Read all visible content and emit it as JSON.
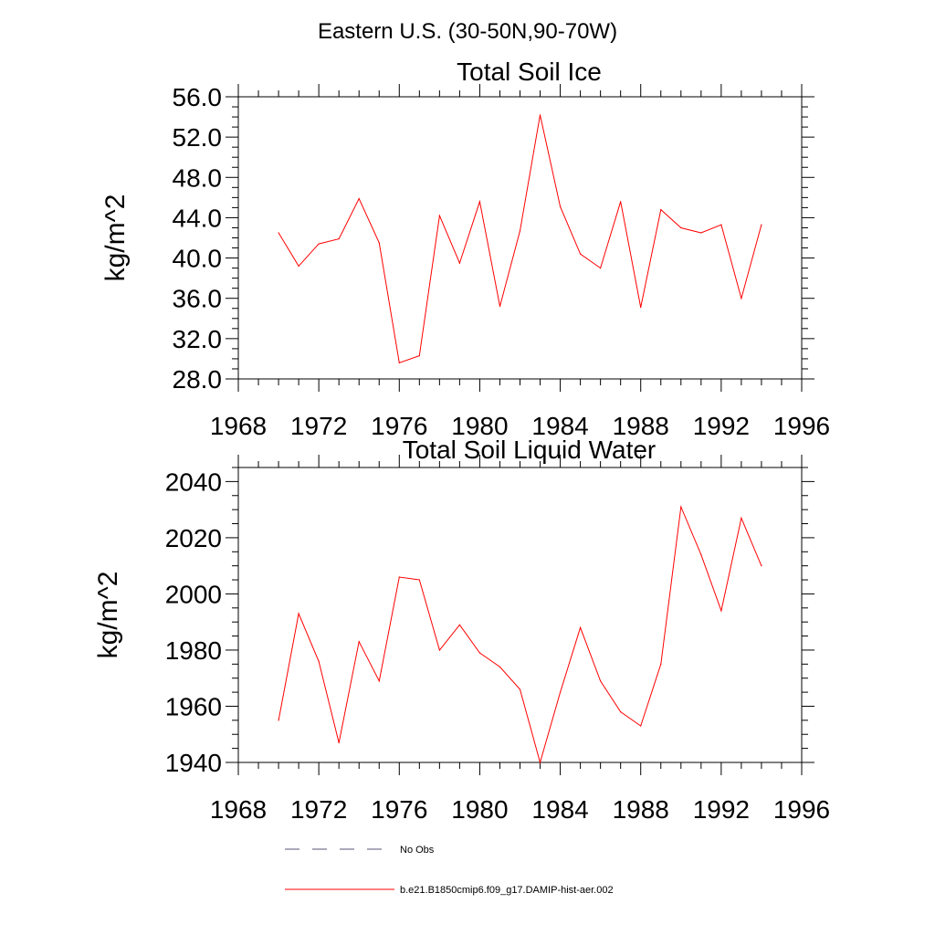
{
  "page_title": "Eastern U.S. (30-50N,90-70W)",
  "chart_data": [
    {
      "type": "line",
      "title": "Total Soil Ice",
      "xlabel": "",
      "ylabel": "kg/m^2",
      "xlim": [
        1968,
        1996
      ],
      "ylim": [
        28,
        56
      ],
      "x_ticks": [
        "1968",
        "1972",
        "1976",
        "1980",
        "1984",
        "1988",
        "1992",
        "1996"
      ],
      "y_ticks": [
        "28.0",
        "32.0",
        "36.0",
        "40.0",
        "44.0",
        "48.0",
        "52.0",
        "56.0"
      ],
      "grid": false,
      "series": [
        {
          "name": "b.e21.B1850cmip6.f09_g17.DAMIP-hist-aer.002",
          "color": "#ff0000",
          "x": [
            1970,
            1971,
            1972,
            1973,
            1974,
            1975,
            1976,
            1977,
            1978,
            1979,
            1980,
            1981,
            1982,
            1983,
            1984,
            1985,
            1986,
            1987,
            1988,
            1989,
            1990,
            1991,
            1992,
            1993,
            1994
          ],
          "y": [
            42.5,
            39.2,
            41.4,
            41.9,
            45.9,
            41.5,
            29.6,
            30.3,
            44.2,
            39.5,
            45.6,
            35.2,
            42.7,
            54.2,
            45.1,
            40.4,
            39.0,
            45.6,
            35.1,
            44.8,
            43.0,
            42.5,
            43.3,
            36.0,
            43.3
          ]
        }
      ]
    },
    {
      "type": "line",
      "title": "Total Soil Liquid Water",
      "xlabel": "",
      "ylabel": "kg/m^2",
      "xlim": [
        1968,
        1996
      ],
      "ylim": [
        1940,
        2045
      ],
      "x_ticks": [
        "1968",
        "1972",
        "1976",
        "1980",
        "1984",
        "1988",
        "1992",
        "1996"
      ],
      "y_ticks": [
        "1940",
        "1960",
        "1980",
        "2000",
        "2020",
        "2040"
      ],
      "grid": false,
      "series": [
        {
          "name": "b.e21.B1850cmip6.f09_g17.DAMIP-hist-aer.002",
          "color": "#ff0000",
          "x": [
            1970,
            1971,
            1972,
            1973,
            1974,
            1975,
            1976,
            1977,
            1978,
            1979,
            1980,
            1981,
            1982,
            1983,
            1984,
            1985,
            1986,
            1987,
            1988,
            1989,
            1990,
            1991,
            1992,
            1993,
            1994
          ],
          "y": [
            1955,
            1993,
            1976,
            1947,
            1983,
            1969,
            2006,
            2005,
            1980,
            1989,
            1979,
            1974,
            1966,
            1940,
            1965,
            1988,
            1969,
            1958,
            1953,
            1975,
            2031,
            2014,
            1994,
            2027,
            2010
          ]
        }
      ]
    }
  ],
  "legend": {
    "items": [
      {
        "label": "No Obs",
        "style": "dashed",
        "color": "#555577"
      },
      {
        "label": "b.e21.B1850cmip6.f09_g17.DAMIP-hist-aer.002",
        "style": "solid",
        "color": "#ff0000"
      }
    ]
  }
}
